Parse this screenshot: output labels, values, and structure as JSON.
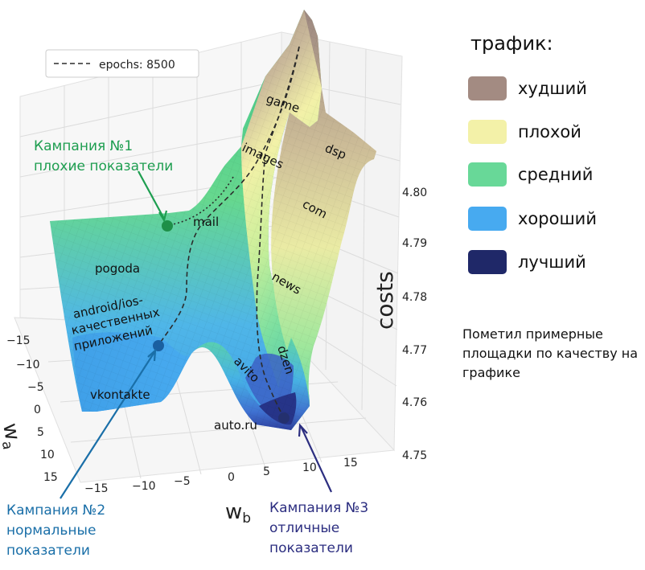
{
  "chart_data": {
    "type": "surface",
    "xlabel": "w_b",
    "ylabel": "w_a",
    "zlabel": "costs",
    "x_ticks": [
      "−15",
      "−10",
      "−5",
      "0",
      "5",
      "10",
      "15"
    ],
    "y_ticks": [
      "−15",
      "−10",
      "−5",
      "0",
      "5",
      "10",
      "15"
    ],
    "z_ticks": [
      "4.75",
      "4.76",
      "4.77",
      "4.78",
      "4.79",
      "4.80"
    ],
    "xlim": [
      -15,
      15
    ],
    "ylim": [
      -15,
      15
    ],
    "zlim": [
      4.75,
      4.8
    ],
    "grid": true,
    "legend": {
      "label": "epochs: 8500",
      "position": "top-left"
    },
    "colormap": {
      "title": "трафик:",
      "items": [
        {
          "label": "худший",
          "color": "#a38b82"
        },
        {
          "label": "плохой",
          "color": "#f3f1a8"
        },
        {
          "label": "средний",
          "color": "#68d898"
        },
        {
          "label": "хороший",
          "color": "#47aaf0"
        },
        {
          "label": "лучший",
          "color": "#1f2868"
        }
      ]
    },
    "surface_labels": [
      "game",
      "dsp",
      "images",
      "com",
      "mail",
      "pogoda",
      "news",
      "android/ios-",
      "качественных",
      "приложений",
      "dzen",
      "avito",
      "vkontakte",
      "auto.ru"
    ],
    "annotations": [
      {
        "lines": [
          "Кампания №1",
          "плохие показатели"
        ],
        "color": "#1e9e50"
      },
      {
        "lines": [
          "Кампания №2",
          "нормальные",
          "показатели"
        ],
        "color": "#1a6fa8"
      },
      {
        "lines": [
          "Кампания №3",
          "отличные",
          "показатели"
        ],
        "color": "#2c2e80"
      }
    ],
    "note": "Пометил примерные площадки по качеству на графике"
  }
}
